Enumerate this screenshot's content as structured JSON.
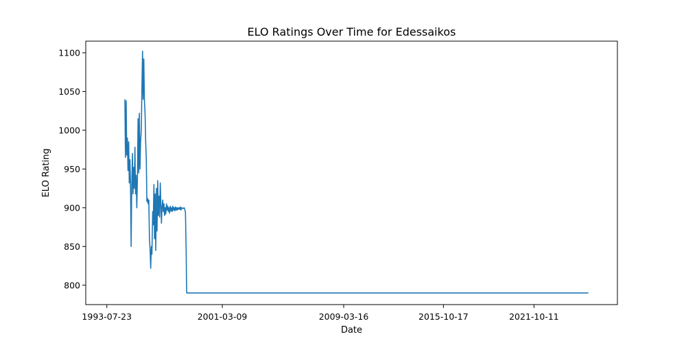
{
  "chart_data": {
    "type": "line",
    "title": "ELO Ratings Over Time for Edessaikos",
    "xlabel": "Date",
    "ylabel": "ELO Rating",
    "x_ticks": [
      "1993-07-23",
      "2001-03-09",
      "2009-03-16",
      "2015-10-17",
      "2021-10-11"
    ],
    "y_ticks": [
      800,
      850,
      900,
      950,
      1000,
      1050,
      1100
    ],
    "xlim": [
      "1992-03-01",
      "2027-04-15"
    ],
    "ylim": [
      775,
      1115
    ],
    "grid": false,
    "colors": {
      "line": "#1f77b4"
    },
    "series": [
      {
        "x": [
          "1994-10-01",
          "1994-10-15",
          "1994-11-01",
          "1994-11-15",
          "1994-12-01",
          "1994-12-15",
          "1995-01-01",
          "1995-01-15",
          "1995-02-01",
          "1995-02-15",
          "1995-03-01",
          "1995-03-15",
          "1995-04-01",
          "1995-04-15",
          "1995-05-01",
          "1995-05-15",
          "1995-06-01",
          "1995-06-15",
          "1995-07-01",
          "1995-07-15",
          "1995-08-01",
          "1995-08-15",
          "1995-09-01",
          "1995-09-15",
          "1995-10-01",
          "1995-10-15",
          "1995-11-01",
          "1995-11-15",
          "1995-12-01",
          "1995-12-15",
          "1996-01-01",
          "1996-01-15",
          "1996-02-01",
          "1996-02-15",
          "1996-03-01",
          "1996-03-15",
          "1996-04-01",
          "1996-04-15",
          "1996-05-01",
          "1996-05-15",
          "1996-06-01",
          "1996-06-15",
          "1996-07-01",
          "1996-07-15",
          "1996-08-01",
          "1996-08-15",
          "1996-09-01",
          "1996-09-15",
          "1996-10-01",
          "1996-10-15",
          "1996-11-01",
          "1996-11-15",
          "1996-12-01",
          "1996-12-15",
          "1997-01-01",
          "1997-01-15",
          "1997-02-01",
          "1997-02-15",
          "1997-03-01",
          "1997-03-15",
          "1997-04-01",
          "1997-04-15",
          "1997-05-01",
          "1997-05-15",
          "1997-06-01",
          "1997-06-15",
          "1997-07-01",
          "1997-07-15",
          "1997-08-01",
          "1997-08-15",
          "1997-09-01",
          "1997-09-15",
          "1997-10-01",
          "1997-10-15",
          "1997-11-01",
          "1997-11-15",
          "1997-12-01",
          "1997-12-15",
          "1998-01-01",
          "1998-01-15",
          "1998-02-01",
          "1998-02-15",
          "1998-03-01",
          "1998-03-15",
          "1998-04-01",
          "1998-04-15",
          "1998-05-01",
          "1998-05-15",
          "1998-06-01",
          "1998-06-15",
          "1998-07-01",
          "1998-08-01",
          "1998-09-01",
          "1998-10-01",
          "1998-10-20",
          "1998-10-25",
          "1998-11-01",
          "2000-01-01",
          "2005-01-01",
          "2010-01-01",
          "2015-01-01",
          "2020-01-01",
          "2025-05-15"
        ],
        "values": [
          1040,
          965,
          1038,
          968,
          990,
          948,
          985,
          932,
          962,
          925,
          850,
          925,
          970,
          918,
          952,
          925,
          978,
          918,
          942,
          900,
          940,
          1015,
          945,
          1022,
          950,
          985,
          1000,
          1050,
          1102,
          1040,
          1092,
          1040,
          1020,
          985,
          962,
          908,
          912,
          905,
          910,
          862,
          845,
          822,
          850,
          840,
          895,
          878,
          930,
          860,
          918,
          845,
          925,
          870,
          935,
          890,
          915,
          888,
          932,
          905,
          880,
          900,
          910,
          895,
          905,
          890,
          900,
          892,
          905,
          897,
          902,
          895,
          900,
          893,
          902,
          896,
          900,
          895,
          902,
          897,
          900,
          896,
          901,
          897,
          900,
          897,
          900,
          898,
          900,
          898,
          901,
          897,
          900,
          899,
          900,
          895,
          840,
          812,
          790,
          790,
          790,
          790,
          790,
          790,
          790
        ]
      }
    ]
  }
}
